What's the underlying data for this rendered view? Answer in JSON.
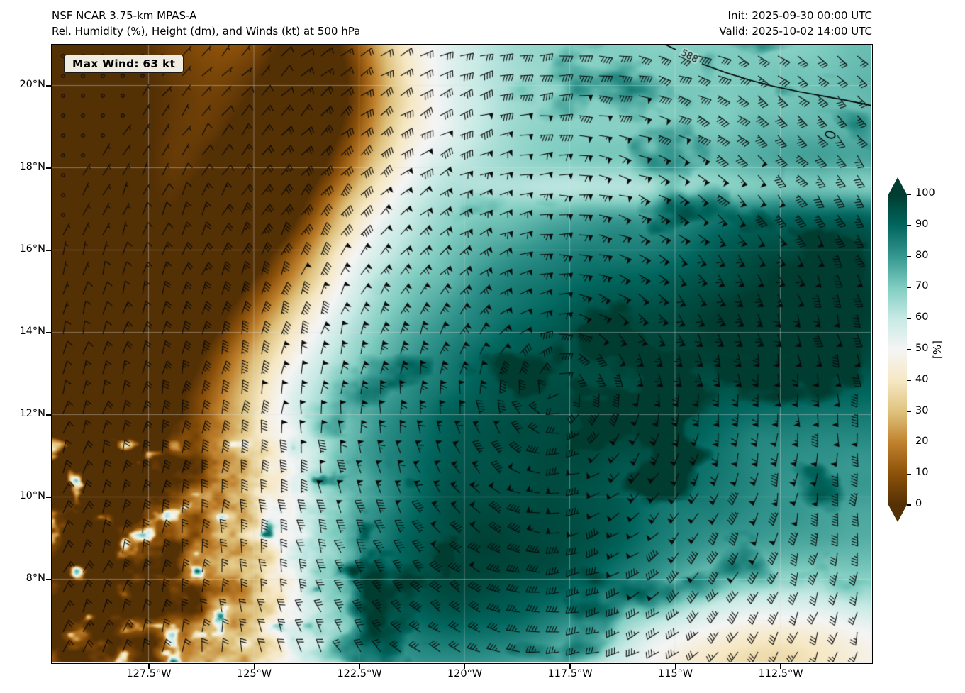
{
  "header": {
    "title_line1": "NSF NCAR 3.75-km MPAS-A",
    "title_line2": "Rel. Humidity (%), Height (dm), and Winds (kt) at 500 hPa",
    "init_label": "Init: 2025-09-30 00:00 UTC",
    "valid_label": "Valid: 2025-10-02 14:00 UTC"
  },
  "map": {
    "max_wind_label": "Max Wind: 63 kt",
    "contour_label": "588",
    "x_ticks": [
      "127.5°W",
      "125°W",
      "122.5°W",
      "120°W",
      "117.5°W",
      "115°W",
      "112.5°W"
    ],
    "y_ticks": [
      "20°N",
      "18°N",
      "16°N",
      "14°N",
      "12°N",
      "10°N",
      "8°N"
    ]
  },
  "colorbar": {
    "label": "[%]",
    "ticks": [
      100,
      90,
      80,
      70,
      60,
      50,
      40,
      30,
      20,
      10,
      0
    ],
    "colors": [
      "#543005",
      "#8c510a",
      "#bf812d",
      "#dfc27d",
      "#f6e8c3",
      "#f5f5f5",
      "#c7eae5",
      "#80cdc1",
      "#35978f",
      "#01665e",
      "#003c30"
    ]
  },
  "chart_data": {
    "type": "heatmap",
    "title": "Rel. Humidity (%), Height (dm), and Winds (kt) at 500 hPa",
    "model": "NSF NCAR 3.75-km MPAS-A",
    "init_time": "2025-09-30 00:00 UTC",
    "valid_time": "2025-10-02 14:00 UTC",
    "field": "relative humidity",
    "units": "%",
    "value_range": [
      0,
      100
    ],
    "max_wind_kt": 63,
    "height_contours_dm": [
      588
    ],
    "x_axis": {
      "label": "longitude",
      "tick_labels": [
        "127.5°W",
        "125°W",
        "122.5°W",
        "120°W",
        "117.5°W",
        "115°W",
        "112.5°W"
      ],
      "range_deg_west": [
        129.8,
        110.3
      ]
    },
    "y_axis": {
      "label": "latitude",
      "tick_labels": [
        "20°N",
        "18°N",
        "16°N",
        "14°N",
        "12°N",
        "10°N",
        "8°N"
      ],
      "range_deg_north": [
        6.0,
        21.0
      ]
    },
    "colormap": {
      "style": "brown-to-teal (BrBG-like), extend both",
      "stops_percent": [
        0,
        10,
        20,
        30,
        40,
        50,
        60,
        70,
        80,
        90,
        100
      ],
      "colors": [
        "#543005",
        "#8c510a",
        "#bf812d",
        "#dfc27d",
        "#f6e8c3",
        "#f5f5f5",
        "#c7eae5",
        "#80cdc1",
        "#35978f",
        "#01665e",
        "#003c30"
      ]
    },
    "colorbar_position": "right",
    "grid_on": true,
    "overlays": [
      "wind barbs (kt)",
      "500 hPa geopotential height contour (dm) labeled 588"
    ],
    "grid_estimate": {
      "lats_deg_n": [
        20,
        18,
        16,
        14,
        12,
        10,
        8
      ],
      "lons_deg_w": [
        127.5,
        125,
        122.5,
        120,
        117.5,
        115,
        112.5
      ],
      "rh_percent": [
        [
          15,
          20,
          35,
          70,
          75,
          70,
          75
        ],
        [
          10,
          15,
          30,
          75,
          80,
          70,
          65
        ],
        [
          10,
          20,
          40,
          75,
          85,
          75,
          80
        ],
        [
          15,
          35,
          55,
          70,
          80,
          90,
          95
        ],
        [
          10,
          30,
          60,
          70,
          95,
          85,
          90
        ],
        [
          20,
          40,
          55,
          65,
          75,
          90,
          85
        ],
        [
          45,
          55,
          60,
          80,
          90,
          80,
          70
        ]
      ]
    }
  }
}
